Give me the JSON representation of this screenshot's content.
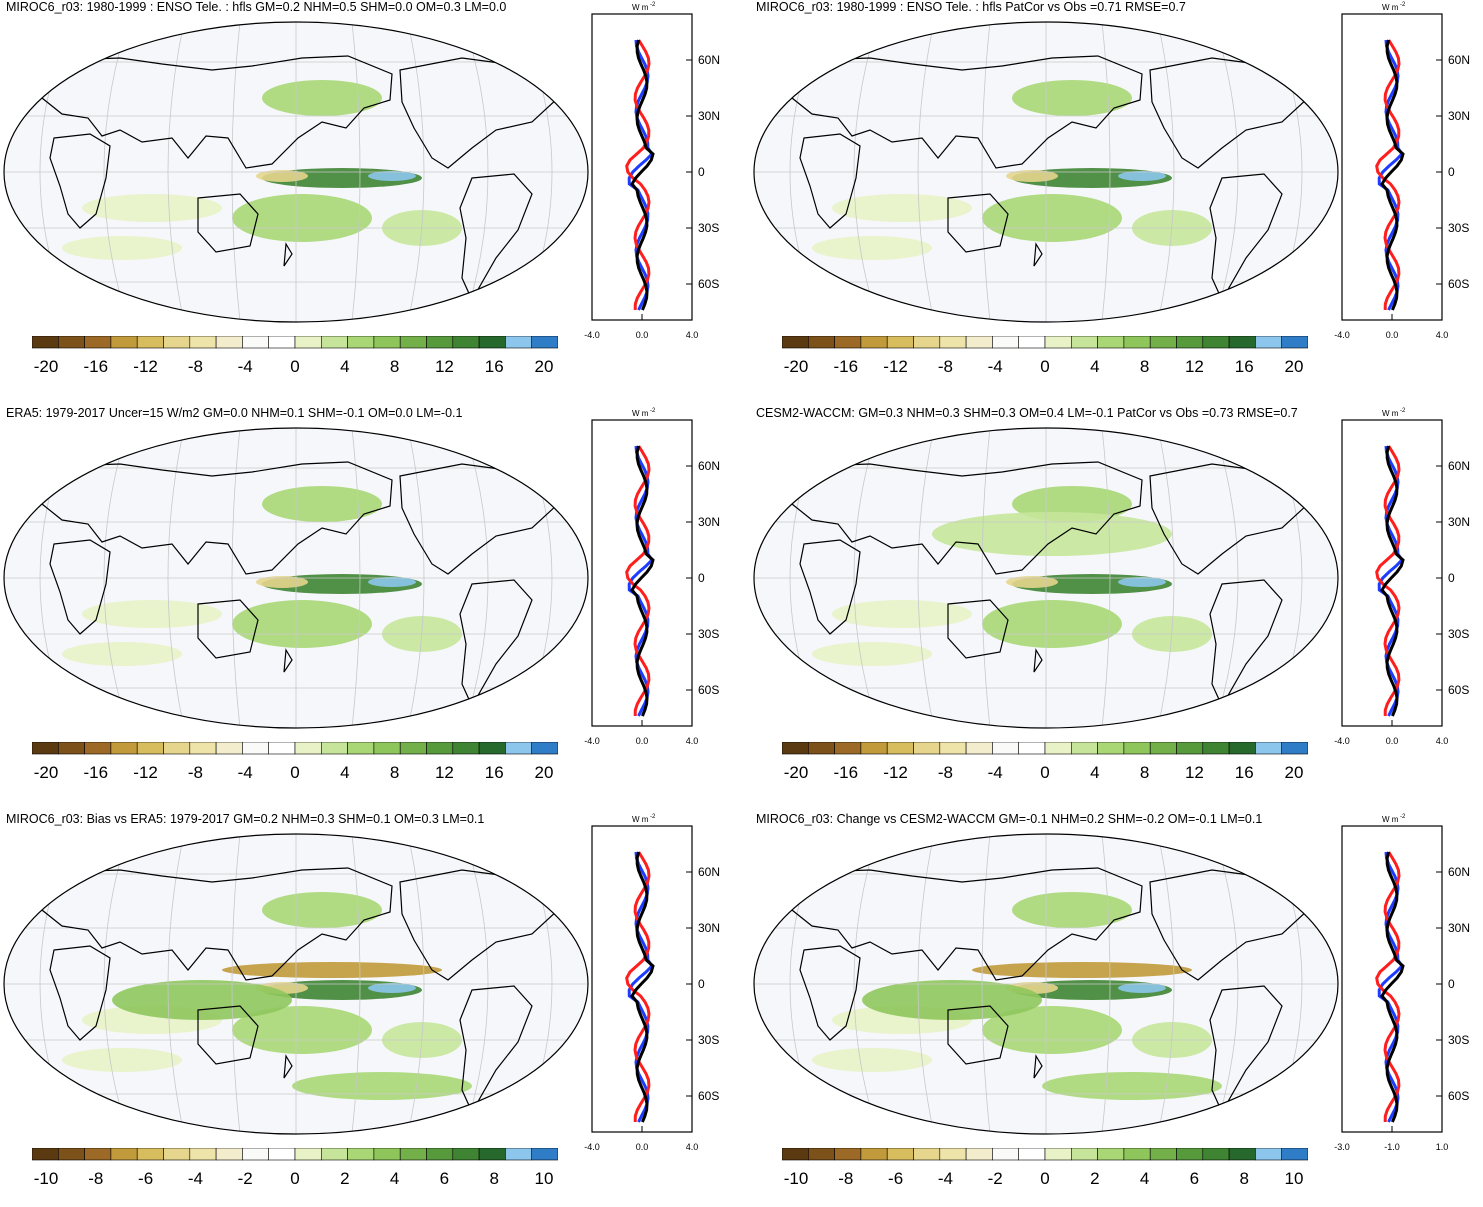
{
  "colors": {
    "levels": [
      "#5b3a11",
      "#7d511a",
      "#9c6a26",
      "#c19a3b",
      "#d8bd5f",
      "#e6d58c",
      "#eee3a8",
      "#f4edcd",
      "#fafaf8",
      "#ffffff",
      "#e8f2c6",
      "#c7e59a",
      "#a9d776",
      "#8fc65c",
      "#74b04a",
      "#579a3c",
      "#3f8433",
      "#27692d",
      "#8cc6ec",
      "#2f7cc7"
    ],
    "land_bg": "#f6f7fb",
    "profile_red": "#ff1e1e",
    "profile_blue": "#1e3cff",
    "profile_black": "#000000"
  },
  "profile_axis": {
    "unit": "W m",
    "unit_sup": "-2",
    "lat_labels": [
      "60N",
      "30N",
      "0",
      "30S",
      "60S"
    ]
  },
  "panels": [
    {
      "title": "MIROC6_r03: 1980-1999 : ENSO Tele. : hfls GM=0.2 NHM=0.5 SHM=0.0 OM=0.3 LM=0.0",
      "cbar_labels": [
        "-20",
        "-16",
        "-12",
        "-8",
        "-4",
        "0",
        "4",
        "8",
        "12",
        "16",
        "20"
      ],
      "profile_ticks": [
        "-4.0",
        "0.0",
        "4.0"
      ]
    },
    {
      "title": "MIROC6_r03: 1980-1999 : ENSO Tele. : hfls PatCor vs Obs =0.71 RMSE=0.7",
      "cbar_labels": [
        "-20",
        "-16",
        "-12",
        "-8",
        "-4",
        "0",
        "4",
        "8",
        "12",
        "16",
        "20"
      ],
      "profile_ticks": [
        "-4.0",
        "0.0",
        "4.0"
      ]
    },
    {
      "title": "ERA5: 1979-2017 Uncer=15 W/m2 GM=0.0 NHM=0.1 SHM=-0.1 OM=0.0 LM=-0.1",
      "cbar_labels": [
        "-20",
        "-16",
        "-12",
        "-8",
        "-4",
        "0",
        "4",
        "8",
        "12",
        "16",
        "20"
      ],
      "profile_ticks": [
        "-4.0",
        "0.0",
        "4.0"
      ]
    },
    {
      "title": "CESM2-WACCM: GM=0.3 NHM=0.3 SHM=0.3 OM=0.4 LM=-0.1 PatCor vs Obs =0.73 RMSE=0.7",
      "cbar_labels": [
        "-20",
        "-16",
        "-12",
        "-8",
        "-4",
        "0",
        "4",
        "8",
        "12",
        "16",
        "20"
      ],
      "profile_ticks": [
        "-4.0",
        "0.0",
        "4.0"
      ]
    },
    {
      "title": "MIROC6_r03: Bias vs ERA5: 1979-2017 GM=0.2 NHM=0.3 SHM=0.1 OM=0.3 LM=0.1",
      "cbar_labels": [
        "-10",
        "-8",
        "-6",
        "-4",
        "-2",
        "0",
        "2",
        "4",
        "6",
        "8",
        "10"
      ],
      "profile_ticks": [
        "-4.0",
        "0.0",
        "4.0"
      ]
    },
    {
      "title": "MIROC6_r03: Change vs CESM2-WACCM GM=-0.1 NHM=0.2 SHM=-0.2 OM=-0.1 LM=0.1",
      "cbar_labels": [
        "-10",
        "-8",
        "-6",
        "-4",
        "-2",
        "0",
        "2",
        "4",
        "6",
        "8",
        "10"
      ],
      "profile_ticks": [
        "-3.0",
        "-1.0",
        "1.0"
      ]
    }
  ]
}
